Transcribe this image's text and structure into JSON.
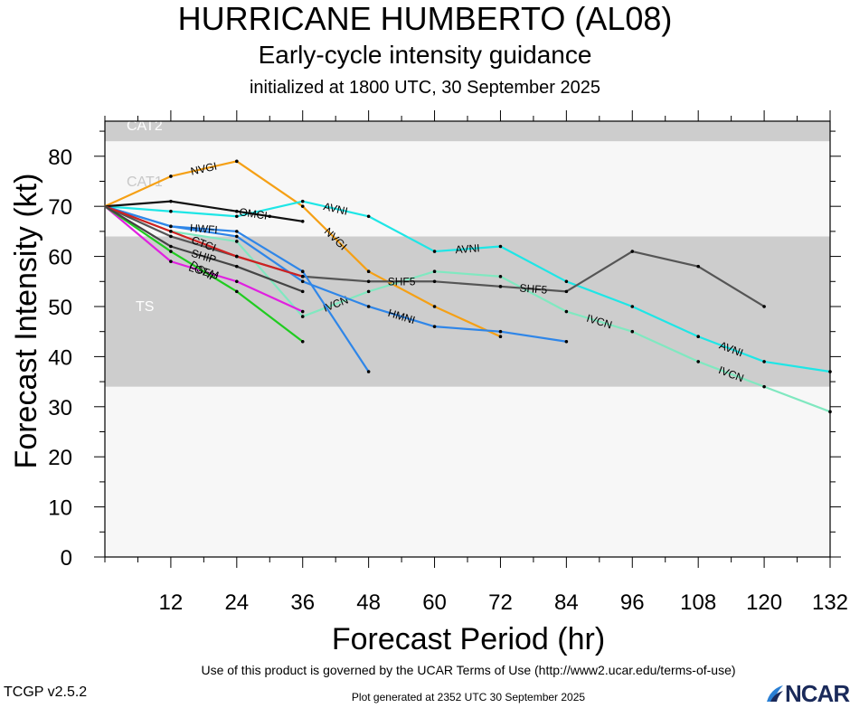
{
  "header": {
    "title": "HURRICANE HUMBERTO (AL08)",
    "subtitle": "Early-cycle intensity guidance",
    "initialized": "initialized at 1800 UTC, 30 September 2025"
  },
  "footer": {
    "terms": "Use of this product is governed by the UCAR Terms of Use (http://www2.ucar.edu/terms-of-use)",
    "version": "TCGP v2.5.2",
    "generated": "Plot generated at 2352 UTC   30 September 2025",
    "logo": "NCAR"
  },
  "chart_data": {
    "type": "line",
    "xlabel": "Forecast Period (hr)",
    "ylabel": "Forecast Intensity (kt)",
    "xlim": [
      0,
      132
    ],
    "ylim": [
      0,
      87
    ],
    "xticks": [
      12,
      24,
      36,
      48,
      60,
      72,
      84,
      96,
      108,
      120,
      132
    ],
    "yticks": [
      0,
      10,
      20,
      30,
      40,
      50,
      60,
      70,
      80
    ],
    "bands": [
      {
        "label": "TS",
        "from": 34,
        "to": 64,
        "color": "#cdcdcd"
      },
      {
        "label": "CAT1",
        "from": 64,
        "to": 83,
        "color": "#f7f7f7"
      },
      {
        "label": "CAT2",
        "from": 83,
        "to": 87,
        "color": "#cdcdcd"
      }
    ],
    "series": [
      {
        "name": "NVGI",
        "color": "#f5a015",
        "label_at": [
          2,
          4
        ],
        "x": [
          0,
          12,
          24,
          36,
          48,
          60,
          72
        ],
        "y": [
          70,
          76,
          79,
          70,
          57,
          50,
          44
        ]
      },
      {
        "name": "AVNI",
        "color": "#1ee6e6",
        "label_at": [
          4,
          6,
          10
        ],
        "x": [
          0,
          12,
          24,
          36,
          48,
          60,
          72,
          84,
          96,
          108,
          120,
          132
        ],
        "y": [
          70,
          69,
          68,
          71,
          68,
          61,
          62,
          55,
          50,
          44,
          39,
          37
        ]
      },
      {
        "name": "IVCN",
        "color": "#80e8c0",
        "label_at": [
          4,
          8,
          10
        ],
        "x": [
          0,
          12,
          24,
          36,
          48,
          60,
          72,
          84,
          96,
          108,
          120,
          132
        ],
        "y": [
          70,
          65,
          63,
          48,
          53,
          57,
          56,
          49,
          45,
          39,
          34,
          29
        ]
      },
      {
        "name": "SHF5",
        "color": "#555555",
        "label_at": [
          5,
          7
        ],
        "x": [
          0,
          12,
          24,
          36,
          48,
          60,
          72,
          84,
          96,
          108,
          120
        ],
        "y": [
          70,
          64,
          60,
          56,
          55,
          55,
          54,
          53,
          61,
          58,
          50
        ]
      },
      {
        "name": "HMNI",
        "color": "#2f86e8",
        "label_at": [
          5
        ],
        "x": [
          0,
          12,
          24,
          36,
          48,
          60,
          72,
          84
        ],
        "y": [
          70,
          66,
          64,
          55,
          50,
          46,
          45,
          43
        ]
      },
      {
        "name": "HWFI",
        "color": "#2f86e8",
        "label_at": [
          2
        ],
        "x": [
          0,
          12,
          24,
          36,
          48
        ],
        "y": [
          70,
          66,
          65,
          57,
          37
        ]
      },
      {
        "name": "OMCI",
        "color": "#111111",
        "label_at": [
          3
        ],
        "x": [
          0,
          12,
          24,
          30,
          36
        ],
        "y": [
          70,
          71,
          69,
          68,
          67
        ]
      },
      {
        "name": "CTCI",
        "color": "#d02020",
        "label_at": [
          2
        ],
        "x": [
          0,
          12,
          24,
          36
        ],
        "y": [
          70,
          65,
          60,
          56
        ]
      },
      {
        "name": "LGEM",
        "color": "#e020e0",
        "label_at": [
          2
        ],
        "x": [
          0,
          12,
          24,
          36
        ],
        "y": [
          70,
          59,
          55,
          49
        ]
      },
      {
        "name": "DSHP",
        "color": "#20cc20",
        "label_at": [
          2
        ],
        "x": [
          0,
          12,
          24,
          36
        ],
        "y": [
          70,
          61,
          53,
          43
        ]
      },
      {
        "name": "SHIP",
        "color": "#444444",
        "label_at": [
          2
        ],
        "x": [
          0,
          12,
          24,
          36
        ],
        "y": [
          70,
          62,
          58,
          53
        ]
      }
    ]
  }
}
